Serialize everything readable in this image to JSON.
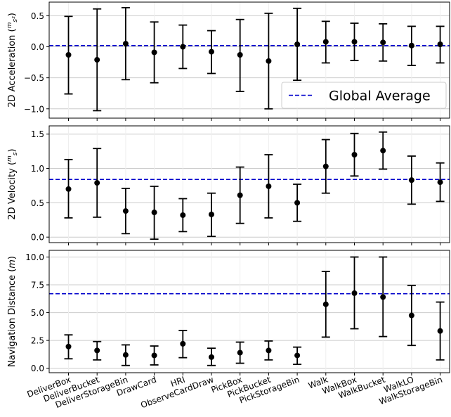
{
  "chart_data": {
    "type": "errorbar",
    "categories": [
      "DeliverBox",
      "DeliverBucket",
      "DeliverStorageBin",
      "DrawCard",
      "HRI",
      "ObserveCardDraw",
      "PickBox",
      "PickBucket",
      "PickStorageBin",
      "Walk",
      "WalkBox",
      "WalkBucket",
      "WalkLO",
      "WalkStorageBin"
    ],
    "legend": {
      "label": "Global Average",
      "location": "lower-right",
      "color": "#0000cc",
      "style": "dashed"
    },
    "grid": true,
    "panels": [
      {
        "ylabel": "2D Acceleration (m/s²)",
        "ylabel_main": "2D Acceleration (",
        "ylabel_num": "m",
        "ylabel_den": "s²",
        "ylabel_close": ")",
        "ylim": [
          -1.15,
          0.72
        ],
        "yticks": [
          "0.5",
          "0.0",
          "−0.5",
          "−1.0"
        ],
        "ytick_values": [
          0.5,
          0.0,
          -0.5,
          -1.0
        ],
        "global_average": 0.02,
        "mean": [
          -0.13,
          -0.21,
          0.05,
          -0.09,
          0.0,
          -0.08,
          -0.13,
          -0.23,
          0.04,
          0.08,
          0.08,
          0.07,
          0.02,
          0.04
        ],
        "lower": [
          -0.76,
          -1.03,
          -0.53,
          -0.58,
          -0.35,
          -0.43,
          -0.72,
          -1.0,
          -0.54,
          -0.26,
          -0.22,
          -0.23,
          -0.3,
          -0.26
        ],
        "upper": [
          0.49,
          0.61,
          0.63,
          0.4,
          0.35,
          0.26,
          0.44,
          0.54,
          0.62,
          0.41,
          0.38,
          0.37,
          0.33,
          0.33
        ]
      },
      {
        "ylabel": "2D Velocity (m/s)",
        "ylabel_main": "2D Velocity (",
        "ylabel_num": "m",
        "ylabel_den": "s",
        "ylabel_close": ")",
        "ylim": [
          -0.08,
          1.62
        ],
        "yticks": [
          "1.5",
          "1.0",
          "0.5",
          "0.0"
        ],
        "ytick_values": [
          1.5,
          1.0,
          0.5,
          0.0
        ],
        "global_average": 0.84,
        "mean": [
          0.7,
          0.79,
          0.38,
          0.36,
          0.32,
          0.33,
          0.61,
          0.74,
          0.5,
          1.03,
          1.2,
          1.26,
          0.83,
          0.8
        ],
        "lower": [
          0.28,
          0.29,
          0.05,
          -0.03,
          0.08,
          0.01,
          0.2,
          0.28,
          0.23,
          0.64,
          0.89,
          0.99,
          0.48,
          0.52
        ],
        "upper": [
          1.13,
          1.29,
          0.71,
          0.74,
          0.56,
          0.64,
          1.02,
          1.2,
          0.77,
          1.42,
          1.51,
          1.53,
          1.18,
          1.08
        ]
      },
      {
        "ylabel": "Navigation Distance (m)",
        "ylabel_main": "Navigation Distance (",
        "ylabel_unit": "m",
        "ylabel_close": ")",
        "ylim": [
          -0.4,
          10.6
        ],
        "yticks": [
          "10.0",
          "7.5",
          "5.0",
          "2.5",
          "0.0"
        ],
        "ytick_values": [
          10.0,
          7.5,
          5.0,
          2.5,
          0.0
        ],
        "global_average": 6.7,
        "mean": [
          1.95,
          1.6,
          1.2,
          1.15,
          2.2,
          1.0,
          1.4,
          1.6,
          1.15,
          5.75,
          6.75,
          6.4,
          4.75,
          3.35
        ],
        "lower": [
          0.85,
          0.75,
          0.25,
          0.3,
          0.95,
          0.25,
          0.45,
          0.75,
          0.35,
          2.8,
          3.55,
          2.85,
          2.05,
          0.75
        ],
        "upper": [
          3.0,
          2.4,
          2.1,
          2.0,
          3.4,
          1.8,
          2.35,
          2.45,
          1.9,
          8.7,
          10.0,
          10.0,
          7.45,
          5.95
        ]
      }
    ]
  }
}
